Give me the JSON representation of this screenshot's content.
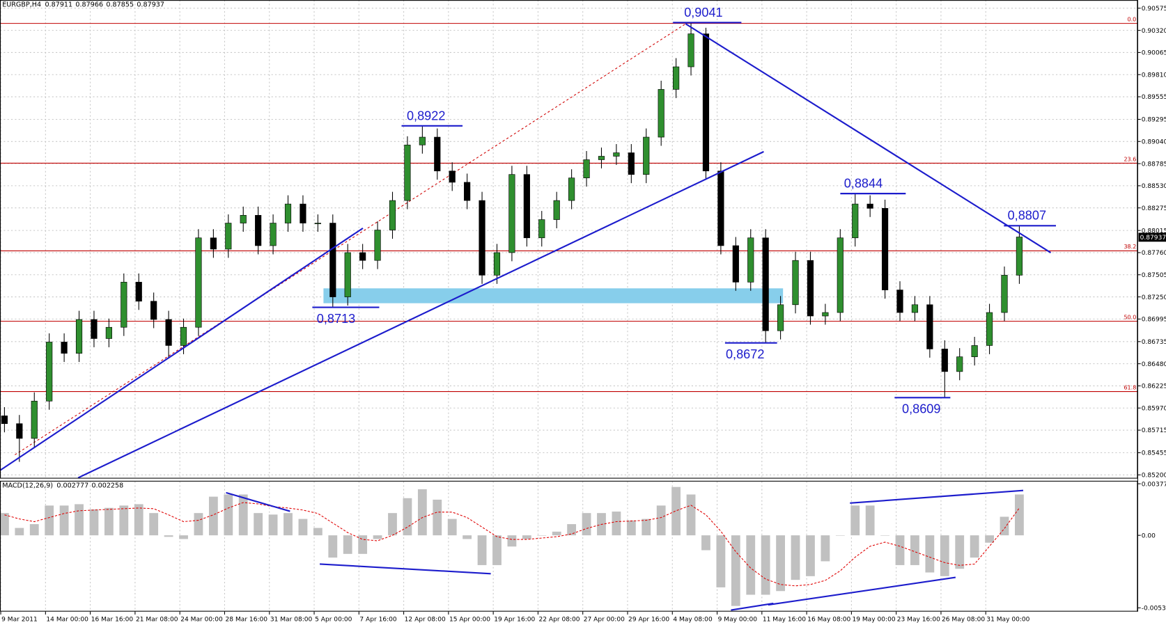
{
  "chart_data": [
    {
      "type": "candlestick",
      "title": "EURGBP,H4",
      "last_bar": {
        "open": 0.87911,
        "high": 0.87966,
        "low": 0.87855,
        "close": 0.87937
      },
      "categories": [
        "9 Mar 2011",
        null,
        null,
        "14 Mar 00:00",
        null,
        null,
        "16 Mar 16:00",
        null,
        null,
        "21 Mar 08:00",
        null,
        null,
        "24 Mar 00:00",
        null,
        null,
        "28 Mar 16:00",
        null,
        null,
        "31 Mar 08:00",
        null,
        null,
        "5 Apr 00:00",
        null,
        null,
        "7 Apr 16:00",
        null,
        null,
        "12 Apr 08:00",
        null,
        null,
        "15 Apr 00:00",
        null,
        null,
        "19 Apr 16:00",
        null,
        null,
        "22 Apr 08:00",
        null,
        null,
        "27 Apr 00:00",
        null,
        null,
        "29 Apr 16:00",
        null,
        null,
        "4 May 08:00",
        null,
        null,
        "9 May 00:00",
        null,
        null,
        "11 May 16:00",
        null,
        null,
        "16 May 08:00",
        null,
        null,
        "19 May 00:00",
        null,
        null,
        "23 May 16:00",
        null,
        null,
        "26 May 08:00",
        null,
        null,
        "31 May 00:00",
        null,
        null
      ],
      "open": [
        0.8588,
        0.8579,
        0.8562,
        0.8605,
        0.8673,
        0.866,
        0.8699,
        0.8677,
        0.869,
        0.8742,
        0.872,
        0.8699,
        0.8669,
        0.869,
        0.8793,
        0.878,
        0.881,
        0.8819,
        0.8784,
        0.881,
        0.8832,
        0.881,
        0.881,
        0.8725,
        0.8776,
        0.8767,
        0.8802,
        0.8836,
        0.89,
        0.8909,
        0.887,
        0.8857,
        0.8836,
        0.875,
        0.8776,
        0.8866,
        0.8793,
        0.8814,
        0.8836,
        0.8862,
        0.8883,
        0.8887,
        0.8891,
        0.8866,
        0.8909,
        0.8964,
        0.899,
        0.9028,
        0.887,
        0.8784,
        0.8742,
        0.8793,
        0.8686,
        0.8716,
        0.8767,
        0.8703,
        0.8707,
        0.8793,
        0.8832,
        0.8827,
        0.8733,
        0.8707,
        0.8716,
        0.8665,
        0.8639,
        0.8656,
        0.8669,
        0.8707,
        0.875
      ],
      "high": [
        0.8598,
        0.8589,
        0.8615,
        0.8683,
        0.8683,
        0.8709,
        0.8709,
        0.87,
        0.8752,
        0.8752,
        0.873,
        0.8709,
        0.87,
        0.8803,
        0.8803,
        0.882,
        0.8829,
        0.8829,
        0.882,
        0.8842,
        0.8842,
        0.882,
        0.882,
        0.8786,
        0.8786,
        0.8812,
        0.8846,
        0.891,
        0.8922,
        0.8919,
        0.888,
        0.8867,
        0.8846,
        0.8786,
        0.8876,
        0.8876,
        0.8824,
        0.8846,
        0.8872,
        0.8893,
        0.8897,
        0.8901,
        0.8901,
        0.8919,
        0.8974,
        0.9,
        0.9041,
        0.9035,
        0.888,
        0.8794,
        0.8803,
        0.8803,
        0.8726,
        0.8777,
        0.8777,
        0.8717,
        0.8803,
        0.8844,
        0.8842,
        0.8837,
        0.8743,
        0.8726,
        0.8726,
        0.8675,
        0.8666,
        0.8679,
        0.8717,
        0.876,
        0.8807
      ],
      "low": [
        0.8569,
        0.8535,
        0.8552,
        0.8595,
        0.865,
        0.865,
        0.8667,
        0.8667,
        0.868,
        0.871,
        0.8689,
        0.8654,
        0.8659,
        0.868,
        0.877,
        0.877,
        0.88,
        0.8774,
        0.8774,
        0.88,
        0.88,
        0.88,
        0.8713,
        0.8715,
        0.8757,
        0.8757,
        0.8792,
        0.8826,
        0.889,
        0.886,
        0.8847,
        0.8826,
        0.874,
        0.874,
        0.8766,
        0.8783,
        0.8783,
        0.8804,
        0.8826,
        0.8852,
        0.8873,
        0.8877,
        0.8856,
        0.8856,
        0.8899,
        0.8954,
        0.898,
        0.886,
        0.8774,
        0.8732,
        0.8732,
        0.8672,
        0.8676,
        0.8706,
        0.8693,
        0.8693,
        0.8697,
        0.8783,
        0.8817,
        0.8723,
        0.8697,
        0.8697,
        0.8655,
        0.8609,
        0.8629,
        0.8646,
        0.8659,
        0.8697,
        0.874
      ],
      "close": [
        0.8579,
        0.8562,
        0.8605,
        0.8673,
        0.866,
        0.8699,
        0.8677,
        0.869,
        0.8742,
        0.872,
        0.8699,
        0.8669,
        0.869,
        0.8793,
        0.878,
        0.881,
        0.8819,
        0.8784,
        0.881,
        0.8832,
        0.881,
        0.881,
        0.8725,
        0.8776,
        0.8767,
        0.8802,
        0.8836,
        0.89,
        0.8909,
        0.887,
        0.8857,
        0.8836,
        0.875,
        0.8776,
        0.8866,
        0.8793,
        0.8814,
        0.8836,
        0.8862,
        0.8883,
        0.8887,
        0.8891,
        0.8866,
        0.8909,
        0.8964,
        0.899,
        0.9028,
        0.887,
        0.8784,
        0.8742,
        0.8793,
        0.8686,
        0.8716,
        0.8767,
        0.8703,
        0.8707,
        0.8793,
        0.8832,
        0.8827,
        0.8733,
        0.8707,
        0.8716,
        0.8665,
        0.8639,
        0.8656,
        0.8669,
        0.8707,
        0.875,
        0.8794
      ],
      "up_color": "#2f8f2f",
      "down_color": "#000000",
      "ylim": [
        0.85166,
        0.90669
      ],
      "yticks": [
        0.90575,
        {
          "value": 0.9032,
          "label": "0.90320"
        },
        0.90065,
        {
          "value": 0.8981,
          "label": "0.89810"
        },
        0.89555,
        0.89295,
        {
          "value": 0.8904,
          "label": "0.89040"
        },
        0.88785,
        {
          "value": 0.8853,
          "label": "0.88530"
        },
        0.88275,
        0.88015,
        {
          "value": 0.8776,
          "label": "0.87760"
        },
        0.87505,
        {
          "value": 0.8725,
          "label": "0.87250"
        },
        0.86995,
        0.86735,
        {
          "value": 0.8648,
          "label": "0.86480"
        },
        0.86225,
        {
          "value": 0.8597,
          "label": "0.85970"
        },
        0.85715,
        0.85455,
        {
          "value": 0.852,
          "label": "0.85200"
        }
      ],
      "grid": true,
      "fib_color": "#c00000",
      "fib_levels": [
        {
          "label": "0.0",
          "value": 0.904
        },
        {
          "label": "23.6",
          "value": 0.8879
        },
        {
          "label": "38.2",
          "value": 0.8778
        },
        {
          "label": "50.0",
          "value": 0.8697
        },
        {
          "label": "61.8",
          "value": 0.8616
        }
      ],
      "annotations": [
        {
          "label": "0,9041",
          "value": 0.9041
        },
        {
          "label": "0,8922",
          "value": 0.8922
        },
        {
          "label": "0,8713",
          "value": 0.8713
        },
        {
          "label": "0,8672",
          "value": 0.8672
        },
        {
          "label": "0,8844",
          "value": 0.8844
        },
        {
          "label": "0,8609",
          "value": 0.8609
        },
        {
          "label": "0,8807",
          "value": 0.8807
        }
      ],
      "annotation_color": "#1c1ccc"
    },
    {
      "type": "macd",
      "title": "MACD(12,26,9)",
      "current_values": [
        0.002777,
        0.002258
      ],
      "histogram": [
        0.00163,
        0.00054,
        0.00082,
        0.00218,
        0.00218,
        0.00228,
        0.0019,
        0.00201,
        0.00218,
        0.00228,
        0.00163,
        -0.00011,
        -0.00027,
        0.00163,
        0.00283,
        0.00299,
        0.00299,
        0.00163,
        0.00152,
        0.00163,
        0.0012,
        0.00054,
        -0.00163,
        -0.00136,
        -0.00136,
        -0.00027,
        0.00163,
        0.00272,
        0.00337,
        0.00261,
        0.0012,
        -0.00027,
        -0.00218,
        -0.00218,
        -0.00082,
        -0.00027,
        0,
        0.00027,
        0.00082,
        0.00163,
        0.00163,
        0.00174,
        0.00109,
        0.0012,
        0.00218,
        0.00354,
        0.00299,
        -0.00109,
        -0.00381,
        -0.00517,
        -0.00435,
        -0.00435,
        -0.00408,
        -0.00326,
        -0.00299,
        -0.0019,
        0,
        0.00218,
        0.00218,
        0,
        -0.00218,
        -0.00218,
        -0.00272,
        -0.00299,
        -0.00245,
        -0.00163,
        -0.00054,
        0.00136,
        0.00299
      ],
      "signal": [
        0.0015,
        0.0012,
        0.001,
        0.0013,
        0.0016,
        0.0018,
        0.00185,
        0.0019,
        0.00195,
        0.002,
        0.00195,
        0.0015,
        0.001,
        0.0011,
        0.0015,
        0.002,
        0.0024,
        0.0023,
        0.0021,
        0.002,
        0.00185,
        0.0016,
        0.0009,
        0.0002,
        -0.0003,
        -0.0004,
        0,
        0.0006,
        0.0013,
        0.0017,
        0.0017,
        0.0013,
        0.0006,
        -0.0001,
        -0.0003,
        -0.0003,
        -0.0002,
        -0.0001,
        0.0001,
        0.0005,
        0.0008,
        0.001,
        0.00105,
        0.0011,
        0.0013,
        0.0018,
        0.0022,
        0.0015,
        0.0003,
        -0.0012,
        -0.0024,
        -0.0032,
        -0.0036,
        -0.0037,
        -0.0036,
        -0.0033,
        -0.0026,
        -0.0016,
        -0.0008,
        -0.0005,
        -0.0008,
        -0.0012,
        -0.0016,
        -0.002,
        -0.0022,
        -0.0021,
        -0.0008,
        0.0005,
        0.002
      ],
      "histogram_color": "#c0c0c0",
      "signal_color": "#e00000",
      "ylim": [
        -0.005582,
        0.003937
      ],
      "yticks": [
        0.003774,
        {
          "value": 0,
          "label": "0.00"
        },
        -0.00531
      ]
    }
  ]
}
